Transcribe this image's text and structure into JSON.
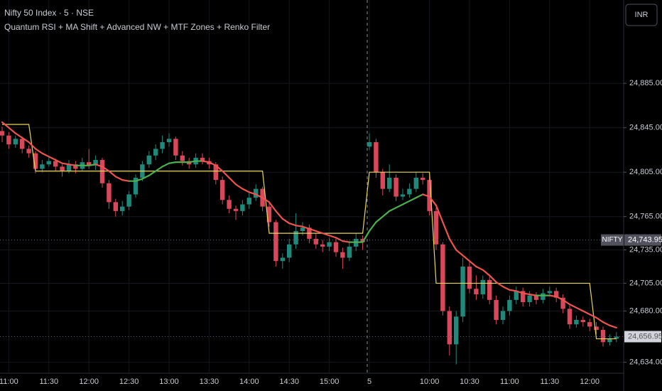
{
  "chart_data": {
    "type": "candlestick",
    "title": "Nifty 50 Index · 5 · NSE",
    "subtitle": "Quantum RSI + MA Shift + Advanced NW + MTF Zones + Renko Filter",
    "currency_button": "INR",
    "categories": [
      null,
      "11:00",
      null,
      null,
      null,
      null,
      null,
      "11:30",
      null,
      null,
      null,
      null,
      null,
      "12:00",
      null,
      null,
      null,
      null,
      null,
      "12:30",
      null,
      null,
      null,
      null,
      null,
      "13:00",
      null,
      null,
      null,
      null,
      null,
      "13:30",
      null,
      null,
      null,
      null,
      null,
      "14:00",
      null,
      null,
      null,
      null,
      null,
      "14:30",
      null,
      null,
      null,
      null,
      null,
      "15:00",
      null,
      null,
      null,
      null,
      null,
      "5",
      null,
      null,
      null,
      null,
      null,
      null,
      null,
      null,
      "10:00",
      null,
      null,
      null,
      null,
      null,
      "10:30",
      null,
      null,
      null,
      null,
      null,
      "11:00",
      null,
      null,
      null,
      null,
      null,
      "11:30",
      null,
      null,
      null,
      null,
      null,
      "12:00",
      null,
      null,
      null,
      null
    ],
    "ohlc": [
      [
        24842,
        24846,
        24832,
        24838
      ],
      [
        24838,
        24841,
        24826,
        24830
      ],
      [
        24830,
        24838,
        24827,
        24835
      ],
      [
        24835,
        24837,
        24822,
        24826
      ],
      [
        24826,
        24829,
        24818,
        24822
      ],
      [
        24822,
        24824,
        24804,
        24808
      ],
      [
        24808,
        24816,
        24805,
        24812
      ],
      [
        24812,
        24819,
        24810,
        24815
      ],
      [
        24815,
        24817,
        24806,
        24810
      ],
      [
        24810,
        24812,
        24801,
        24806
      ],
      [
        24806,
        24816,
        24804,
        24812
      ],
      [
        24812,
        24815,
        24804,
        24808
      ],
      [
        24808,
        24818,
        24806,
        24814
      ],
      [
        24814,
        24826,
        24808,
        24811
      ],
      [
        24811,
        24820,
        24807,
        24816
      ],
      [
        24816,
        24818,
        24791,
        24795
      ],
      [
        24795,
        24798,
        24772,
        24778
      ],
      [
        24778,
        24781,
        24765,
        24770
      ],
      [
        24770,
        24779,
        24766,
        24774
      ],
      [
        24774,
        24788,
        24771,
        24785
      ],
      [
        24785,
        24803,
        24782,
        24800
      ],
      [
        24800,
        24815,
        24797,
        24812
      ],
      [
        24812,
        24824,
        24809,
        24820
      ],
      [
        24820,
        24830,
        24816,
        24826
      ],
      [
        24826,
        24838,
        24822,
        24832
      ],
      [
        24832,
        24840,
        24828,
        24835
      ],
      [
        24835,
        24837,
        24816,
        24820
      ],
      [
        24820,
        24824,
        24811,
        24815
      ],
      [
        24815,
        24818,
        24808,
        24812
      ],
      [
        24812,
        24822,
        24809,
        24818
      ],
      [
        24818,
        24822,
        24812,
        24815
      ],
      [
        24815,
        24818,
        24808,
        24812
      ],
      [
        24812,
        24814,
        24794,
        24798
      ],
      [
        24798,
        24801,
        24776,
        24780
      ],
      [
        24780,
        24784,
        24768,
        24772
      ],
      [
        24772,
        24775,
        24762,
        24770
      ],
      [
        24770,
        24780,
        24766,
        24776
      ],
      [
        24776,
        24786,
        24772,
        24782
      ],
      [
        24782,
        24794,
        24779,
        24790
      ],
      [
        24790,
        24792,
        24770,
        24774
      ],
      [
        24774,
        24777,
        24756,
        24760
      ],
      [
        24760,
        24762,
        24720,
        24725
      ],
      [
        24725,
        24732,
        24718,
        24728
      ],
      [
        24728,
        24745,
        24724,
        24740
      ],
      [
        24740,
        24768,
        24736,
        24752
      ],
      [
        24752,
        24760,
        24748,
        24755
      ],
      [
        24755,
        24758,
        24741,
        24745
      ],
      [
        24745,
        24750,
        24736,
        24740
      ],
      [
        24740,
        24744,
        24733,
        24738
      ],
      [
        24738,
        24746,
        24734,
        24742
      ],
      [
        24742,
        24745,
        24729,
        24733
      ],
      [
        24733,
        24737,
        24718,
        24728
      ],
      [
        24728,
        24742,
        24725,
        24738
      ],
      [
        24738,
        24750,
        24734,
        24745
      ],
      [
        24745,
        24748,
        24735,
        24742
      ],
      [
        24828,
        24840,
        24825,
        24832
      ],
      [
        24832,
        24835,
        24800,
        24805
      ],
      [
        24805,
        24808,
        24784,
        24790
      ],
      [
        24790,
        24812,
        24787,
        24800
      ],
      [
        24800,
        24803,
        24779,
        24783
      ],
      [
        24783,
        24790,
        24780,
        24785
      ],
      [
        24785,
        24795,
        24782,
        24790
      ],
      [
        24790,
        24805,
        24787,
        24800
      ],
      [
        24800,
        24804,
        24794,
        24798
      ],
      [
        24798,
        24801,
        24766,
        24770
      ],
      [
        24770,
        24773,
        24735,
        24740
      ],
      [
        24740,
        24742,
        24676,
        24680
      ],
      [
        24680,
        24684,
        24640,
        24650
      ],
      [
        24650,
        24680,
        24632,
        24675
      ],
      [
        24675,
        24728,
        24670,
        24720
      ],
      [
        24720,
        24724,
        24696,
        24700
      ],
      [
        24700,
        24712,
        24690,
        24695
      ],
      [
        24695,
        24712,
        24691,
        24708
      ],
      [
        24708,
        24711,
        24686,
        24690
      ],
      [
        24690,
        24694,
        24668,
        24672
      ],
      [
        24672,
        24684,
        24668,
        24680
      ],
      [
        24680,
        24694,
        24676,
        24690
      ],
      [
        24690,
        24702,
        24686,
        24698
      ],
      [
        24698,
        24701,
        24684,
        24688
      ],
      [
        24688,
        24698,
        24684,
        24694
      ],
      [
        24694,
        24697,
        24686,
        24690
      ],
      [
        24690,
        24700,
        24687,
        24696
      ],
      [
        24696,
        24702,
        24693,
        24698
      ],
      [
        24698,
        24701,
        24688,
        24692
      ],
      [
        24692,
        24695,
        24678,
        24682
      ],
      [
        24682,
        24685,
        24664,
        24668
      ],
      [
        24668,
        24676,
        24665,
        24672
      ],
      [
        24672,
        24675,
        24666,
        24670
      ],
      [
        24670,
        24673,
        24662,
        24666
      ],
      [
        24666,
        24670,
        24659,
        24663
      ],
      [
        24663,
        24666,
        24648,
        24652
      ],
      [
        24652,
        24659,
        24649,
        24655
      ],
      [
        24655,
        24661,
        24652,
        24657
      ]
    ],
    "up_color": "#1f8a7c",
    "down_color": "#d9485a",
    "ma": {
      "up_color": "#4caf50",
      "down_color": "#ef5350",
      "values": [
        24850,
        24845,
        24840,
        24836,
        24832,
        24826,
        24822,
        24819,
        24816,
        24813,
        24812,
        24811,
        24811,
        24811,
        24812,
        24810,
        24806,
        24801,
        24798,
        24797,
        24797,
        24799,
        24802,
        24806,
        24810,
        24813,
        24814,
        24814,
        24814,
        24815,
        24815,
        24814,
        24811,
        24806,
        24800,
        24794,
        24790,
        24787,
        24785,
        24782,
        24778,
        24770,
        24763,
        24759,
        24757,
        24756,
        24754,
        24752,
        24750,
        24748,
        24746,
        24743,
        24742,
        24742,
        24742,
        24752,
        24760,
        24765,
        24770,
        24773,
        24776,
        24779,
        24782,
        24785,
        24783,
        24775,
        24760,
        24745,
        24735,
        24730,
        24725,
        24720,
        24717,
        24712,
        24706,
        24702,
        24699,
        24698,
        24696,
        24695,
        24694,
        24694,
        24694,
        24693,
        24690,
        24686,
        24683,
        24680,
        24677,
        24674,
        24670,
        24667,
        24665
      ]
    },
    "renko": {
      "color": "#e8d65a",
      "values": [
        24848,
        24848,
        24848,
        24848,
        24848,
        24806,
        24806,
        24806,
        24806,
        24806,
        24806,
        24806,
        24806,
        24806,
        24806,
        24806,
        24806,
        24806,
        24806,
        24806,
        24806,
        24806,
        24806,
        24806,
        24806,
        24806,
        24806,
        24806,
        24806,
        24806,
        24806,
        24806,
        24806,
        24806,
        24806,
        24806,
        24806,
        24806,
        24806,
        24806,
        24750,
        24750,
        24750,
        24750,
        24750,
        24750,
        24750,
        24750,
        24750,
        24750,
        24750,
        24750,
        24750,
        24750,
        24750,
        24805,
        24805,
        24805,
        24805,
        24805,
        24805,
        24805,
        24805,
        24805,
        24805,
        24705,
        24705,
        24705,
        24705,
        24705,
        24705,
        24705,
        24705,
        24705,
        24705,
        24705,
        24705,
        24705,
        24705,
        24705,
        24705,
        24705,
        24705,
        24705,
        24705,
        24705,
        24705,
        24705,
        24705,
        24655,
        24655,
        24655,
        24655
      ]
    },
    "ylim": [
      24624,
      24960
    ],
    "yticks": [
      {
        "value": 24885,
        "label": "24,885.00"
      },
      {
        "value": 24845,
        "label": "24,845.00"
      },
      {
        "value": 24805,
        "label": "24,805.00"
      },
      {
        "value": 24765,
        "label": "24,765.00"
      },
      {
        "value": 24735,
        "label": "24,735.00"
      },
      {
        "value": 24705,
        "label": "24,705.00"
      },
      {
        "value": 24680,
        "label": "24,680.00"
      },
      {
        "value": 24634,
        "label": "24,634.00"
      }
    ],
    "price_markers": [
      {
        "name": "NIFTY",
        "value": 24743.95,
        "label": "24,743.95"
      },
      {
        "value": 24656.95,
        "label": "24,656.95"
      }
    ],
    "grid": true
  }
}
